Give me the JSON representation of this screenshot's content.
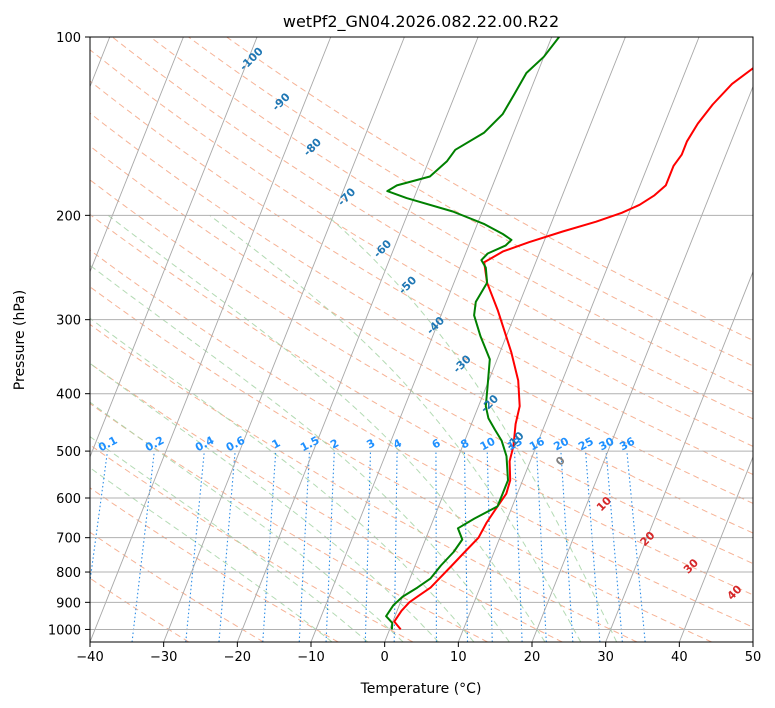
{
  "chart_data": {
    "type": "skew-t log-p diagram",
    "title": "wetPf2_GN04.2026.082.22.00.R22",
    "xlabel": "Temperature (°C)",
    "ylabel": "Pressure (hPa)",
    "xlim": [
      -40,
      50
    ],
    "ylim_hpa": [
      1050,
      100
    ],
    "x_ticks": [
      "−40",
      "−30",
      "−20",
      "−10",
      "0",
      "10",
      "20",
      "30",
      "40",
      "50"
    ],
    "x_tick_values": [
      -40,
      -30,
      -20,
      -10,
      0,
      10,
      20,
      30,
      40,
      50
    ],
    "y_ticks": [
      "100",
      "200",
      "300",
      "400",
      "500",
      "600",
      "700",
      "800",
      "900",
      "1000"
    ],
    "y_tick_values": [
      100,
      200,
      300,
      400,
      500,
      600,
      700,
      800,
      900,
      1000
    ],
    "colors": {
      "temperature": "#ff0000",
      "dewpoint": "#008000",
      "isotherm": "#a8a8a8",
      "dry_adiabat": "#f4a582",
      "moist_adiabat": "#a6d4a6",
      "mixing_ratio": "#2b8ce6",
      "height_label": "#1f77b4",
      "mixing_label": "#1e90ff",
      "freezing_label": "#d62728"
    },
    "series": [
      {
        "name": "Temperature",
        "points": [
          [
            1.5,
            1000
          ],
          [
            0.2,
            970
          ],
          [
            0.6,
            930
          ],
          [
            1.2,
            900
          ],
          [
            2.0,
            880
          ],
          [
            3.3,
            850
          ],
          [
            4.0,
            820
          ],
          [
            5.0,
            780
          ],
          [
            6.0,
            740
          ],
          [
            7.1,
            700
          ],
          [
            7.4,
            660
          ],
          [
            8.0,
            620
          ],
          [
            8.5,
            590
          ],
          [
            8.3,
            560
          ],
          [
            7.2,
            520
          ],
          [
            6.9,
            490
          ],
          [
            6.0,
            450
          ],
          [
            5.6,
            420
          ],
          [
            4.0,
            380
          ],
          [
            1.5,
            340
          ],
          [
            -2.5,
            290
          ],
          [
            -5.5,
            260
          ],
          [
            -7.0,
            240
          ],
          [
            -5.0,
            230
          ],
          [
            -2.0,
            222
          ],
          [
            2.0,
            213
          ],
          [
            6.0,
            205
          ],
          [
            9.0,
            198
          ],
          [
            11.0,
            192
          ],
          [
            12.5,
            185
          ],
          [
            13.5,
            178
          ],
          [
            13.5,
            165
          ],
          [
            14.0,
            158
          ],
          [
            14.0,
            150
          ],
          [
            14.5,
            140
          ],
          [
            15.5,
            130
          ],
          [
            17.0,
            120
          ],
          [
            19.0,
            113
          ],
          [
            21.5,
            107
          ],
          [
            24.0,
            100
          ]
        ]
      },
      {
        "name": "Dewpoint",
        "points": [
          [
            0.3,
            1000
          ],
          [
            0,
            975
          ],
          [
            -1.2,
            950
          ],
          [
            -0.8,
            910
          ],
          [
            0,
            880
          ],
          [
            1.5,
            850
          ],
          [
            2.8,
            820
          ],
          [
            3.5,
            780
          ],
          [
            4.5,
            740
          ],
          [
            5.0,
            705
          ],
          [
            3.8,
            675
          ],
          [
            5.5,
            650
          ],
          [
            8.0,
            620
          ],
          [
            8.0,
            590
          ],
          [
            8.0,
            560
          ],
          [
            6.5,
            510
          ],
          [
            5.0,
            480
          ],
          [
            3.5,
            460
          ],
          [
            2.0,
            440
          ],
          [
            1.0,
            420
          ],
          [
            0.2,
            390
          ],
          [
            -1.0,
            350
          ],
          [
            -3.5,
            320
          ],
          [
            -5.5,
            295
          ],
          [
            -6.0,
            280
          ],
          [
            -5.5,
            260
          ],
          [
            -6.5,
            245
          ],
          [
            -7.5,
            238
          ],
          [
            -7.0,
            232
          ],
          [
            -5.0,
            225
          ],
          [
            -4.5,
            220
          ],
          [
            -6.0,
            215
          ],
          [
            -9.0,
            207
          ],
          [
            -14.0,
            197
          ],
          [
            -21.0,
            187
          ],
          [
            -24.0,
            182
          ],
          [
            -23.0,
            178
          ],
          [
            -19.0,
            172
          ],
          [
            -17.5,
            162
          ],
          [
            -17.0,
            155
          ],
          [
            -14.0,
            145
          ],
          [
            -12.5,
            135
          ],
          [
            -12.0,
            125
          ],
          [
            -11.5,
            115
          ],
          [
            -10.0,
            108
          ],
          [
            -9.0,
            100
          ]
        ]
      }
    ],
    "isobar_labels": [
      100,
      200,
      300,
      400,
      500,
      600,
      700,
      800,
      900,
      1000
    ],
    "dry_adiabats_c": [
      -30,
      -20,
      -10,
      0,
      10,
      20,
      30,
      40,
      50,
      60,
      70,
      80,
      90,
      100,
      110,
      120,
      130,
      140,
      150
    ],
    "moist_adiabats_c": [
      -10,
      -5,
      0,
      5,
      10,
      15,
      20,
      25,
      30
    ],
    "mixing_ratio_lines": [
      "0.1",
      "0.2",
      "0.4",
      "0.6",
      "1",
      "1.5",
      "2",
      "3",
      "4",
      "6",
      "8",
      "10",
      "13",
      "16",
      "20",
      "25",
      "30",
      "36"
    ],
    "mixing_ratio_values": [
      0.1,
      0.2,
      0.4,
      0.6,
      1,
      1.5,
      2,
      3,
      4,
      6,
      8,
      10,
      13,
      16,
      20,
      25,
      30,
      36
    ],
    "height_labels": [
      {
        "label": "-100",
        "pressure": 110
      },
      {
        "label": "-90",
        "pressure": 130
      },
      {
        "label": "-80",
        "pressure": 155
      },
      {
        "label": "-70",
        "pressure": 188
      },
      {
        "label": "-60",
        "pressure": 230
      },
      {
        "label": "-50",
        "pressure": 265
      },
      {
        "label": "-40",
        "pressure": 310
      },
      {
        "label": "-30",
        "pressure": 360
      },
      {
        "label": "-20",
        "pressure": 420
      },
      {
        "label": "-10",
        "pressure": 485
      }
    ],
    "freezing_labels": [
      {
        "label": "0",
        "temp": 0,
        "pressure": 525
      },
      {
        "label": "10",
        "temp": 10,
        "pressure": 620
      },
      {
        "label": "20",
        "temp": 20,
        "pressure": 710
      },
      {
        "label": "30",
        "temp": 30,
        "pressure": 790
      },
      {
        "label": "40",
        "temp": 40,
        "pressure": 875
      }
    ]
  }
}
